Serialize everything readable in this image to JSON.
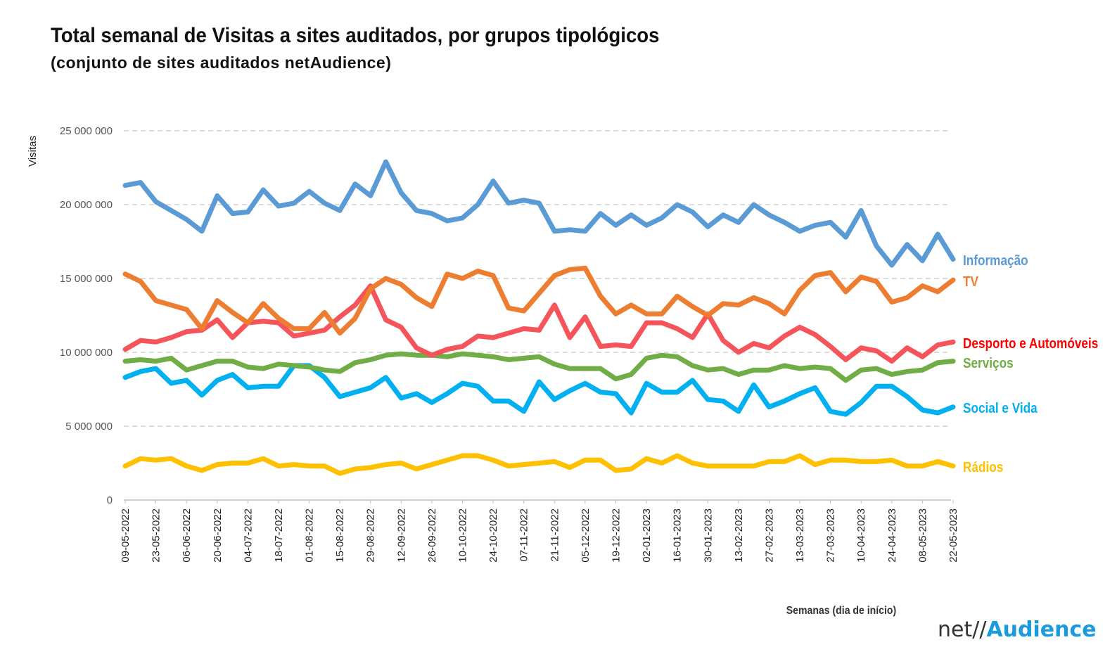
{
  "chart_data": {
    "type": "line",
    "title": "Total semanal de Visitas a sites auditados, por grupos tipológicos",
    "subtitle": "(conjunto de sites auditados netAudience)",
    "ylabel": "Visitas",
    "xlabel": "Semanas  (dia de início)",
    "ylim": [
      0,
      25000000
    ],
    "yticks": [
      0,
      5000000,
      10000000,
      15000000,
      20000000,
      25000000
    ],
    "ytick_labels": [
      "0",
      "5 000 000",
      "10 000 000",
      "15 000 000",
      "20 000 000",
      "25 000 000"
    ],
    "grid": true,
    "legend": "right, labels at line ends",
    "x_tick_labels": [
      "09-05-2022",
      "23-05-2022",
      "06-06-2022",
      "20-06-2022",
      "04-07-2022",
      "18-07-2022",
      "01-08-2022",
      "15-08-2022",
      "29-08-2022",
      "12-09-2022",
      "26-09-2022",
      "10-10-2022",
      "24-10-2022",
      "07-11-2022",
      "21-11-2022",
      "05-12-2022",
      "19-12-2022",
      "02-01-2023",
      "16-01-2023",
      "30-01-2023",
      "13-02-2023",
      "27-02-2023",
      "13-03-2023",
      "27-03-2023",
      "10-04-2023",
      "24-04-2023",
      "08-05-2023",
      "22-05-2023"
    ],
    "n_weeks": 55,
    "series": [
      {
        "name": "Informação",
        "color": "#5b9bd5",
        "values": [
          21.3,
          21.5,
          20.2,
          19.6,
          19.0,
          18.2,
          20.6,
          19.4,
          19.5,
          21.0,
          19.9,
          20.1,
          20.9,
          20.1,
          19.6,
          21.4,
          20.6,
          22.9,
          20.8,
          19.6,
          19.4,
          18.9,
          19.1,
          20.0,
          21.6,
          20.1,
          20.3,
          20.1,
          18.2,
          18.3,
          18.2,
          19.4,
          18.6,
          19.3,
          18.6,
          19.1,
          20.0,
          19.5,
          18.5,
          19.3,
          18.8,
          20.0,
          19.3,
          18.8,
          18.2,
          18.6,
          18.8,
          17.8,
          19.6,
          17.2,
          15.9,
          17.3,
          16.2,
          18.0,
          16.3
        ]
      },
      {
        "name": "TV",
        "color": "#ed7d31",
        "values": [
          15.3,
          14.8,
          13.5,
          13.2,
          12.9,
          11.6,
          13.5,
          12.7,
          12.0,
          13.3,
          12.3,
          11.6,
          11.6,
          12.7,
          11.3,
          12.3,
          14.3,
          15.0,
          14.6,
          13.7,
          13.1,
          15.3,
          15.0,
          15.5,
          15.2,
          13.0,
          12.8,
          14.0,
          15.2,
          15.6,
          15.7,
          13.8,
          12.6,
          13.2,
          12.6,
          12.6,
          13.8,
          13.1,
          12.5,
          13.3,
          13.2,
          13.7,
          13.3,
          12.6,
          14.2,
          15.2,
          15.4,
          14.1,
          15.1,
          14.8,
          13.4,
          13.7,
          14.5,
          14.1,
          14.9
        ]
      },
      {
        "name": "Desporto e Automóveis",
        "color": "#fe0000",
        "stroke": "#f5555a",
        "values": [
          10.2,
          10.8,
          10.7,
          11.0,
          11.4,
          11.5,
          12.2,
          11.0,
          12.0,
          12.1,
          12.0,
          11.1,
          11.3,
          11.5,
          12.4,
          13.2,
          14.5,
          12.2,
          11.7,
          10.3,
          9.8,
          10.2,
          10.4,
          11.1,
          11.0,
          11.3,
          11.6,
          11.5,
          13.2,
          11.0,
          12.4,
          10.4,
          10.5,
          10.4,
          12.0,
          12.0,
          11.6,
          11.0,
          12.6,
          10.8,
          10.0,
          10.6,
          10.3,
          11.1,
          11.7,
          11.2,
          10.4,
          9.5,
          10.3,
          10.1,
          9.4,
          10.3,
          9.7,
          10.5,
          10.7
        ]
      },
      {
        "name": "Serviços",
        "color": "#70ad47",
        "values": [
          9.4,
          9.5,
          9.4,
          9.6,
          8.8,
          9.1,
          9.4,
          9.4,
          9.0,
          8.9,
          9.2,
          9.1,
          9.0,
          8.8,
          8.7,
          9.3,
          9.5,
          9.8,
          9.9,
          9.8,
          9.8,
          9.7,
          9.9,
          9.8,
          9.7,
          9.5,
          9.6,
          9.7,
          9.2,
          8.9,
          8.9,
          8.9,
          8.2,
          8.5,
          9.6,
          9.8,
          9.7,
          9.1,
          8.8,
          8.9,
          8.5,
          8.8,
          8.8,
          9.1,
          8.9,
          9.0,
          8.9,
          8.1,
          8.8,
          8.9,
          8.5,
          8.7,
          8.8,
          9.3,
          9.4
        ]
      },
      {
        "name": "Social e Vida",
        "color": "#00b0f0",
        "values": [
          8.3,
          8.7,
          8.9,
          7.9,
          8.1,
          7.1,
          8.1,
          8.5,
          7.6,
          7.7,
          7.7,
          9.1,
          9.1,
          8.3,
          7.0,
          7.3,
          7.6,
          8.3,
          6.9,
          7.2,
          6.6,
          7.2,
          7.9,
          7.7,
          6.7,
          6.7,
          6.0,
          8.0,
          6.8,
          7.4,
          7.9,
          7.3,
          7.2,
          5.9,
          7.9,
          7.3,
          7.3,
          8.1,
          6.8,
          6.7,
          6.0,
          7.8,
          6.3,
          6.7,
          7.2,
          7.6,
          6.0,
          5.8,
          6.6,
          7.7,
          7.7,
          7.0,
          6.1,
          5.9,
          6.3
        ]
      },
      {
        "name": "Rádios",
        "color": "#ffc000",
        "values": [
          2.3,
          2.8,
          2.7,
          2.8,
          2.3,
          2.0,
          2.4,
          2.5,
          2.5,
          2.8,
          2.3,
          2.4,
          2.3,
          2.3,
          1.8,
          2.1,
          2.2,
          2.4,
          2.5,
          2.1,
          2.4,
          2.7,
          3.0,
          3.0,
          2.7,
          2.3,
          2.4,
          2.5,
          2.6,
          2.2,
          2.7,
          2.7,
          2.0,
          2.1,
          2.8,
          2.5,
          3.0,
          2.5,
          2.3,
          2.3,
          2.3,
          2.3,
          2.6,
          2.6,
          3.0,
          2.4,
          2.7,
          2.7,
          2.6,
          2.6,
          2.7,
          2.3,
          2.3,
          2.6,
          2.3
        ]
      }
    ]
  },
  "logo": {
    "net": "net//",
    "audience": "Audience"
  }
}
